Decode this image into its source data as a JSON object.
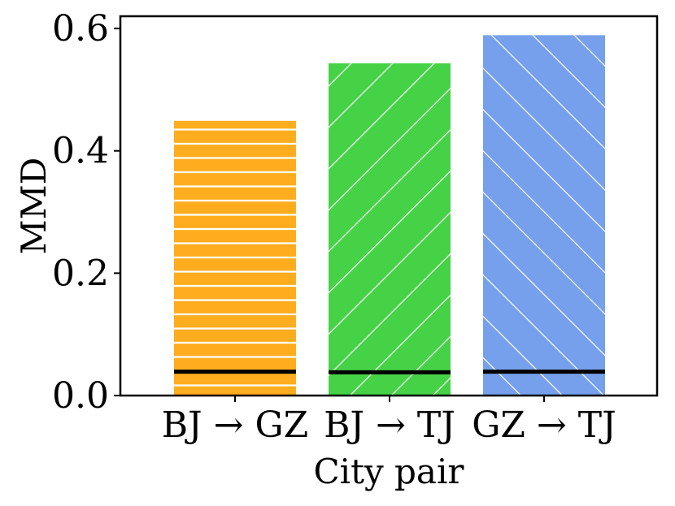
{
  "chart_data": {
    "type": "bar",
    "categories": [
      "BJ → GZ",
      "BJ → TJ",
      "GZ → TJ"
    ],
    "values": [
      0.449,
      0.543,
      0.589
    ],
    "baseline_values": [
      0.039,
      0.038,
      0.039
    ],
    "colors": [
      "#ffad1f",
      "#46d246",
      "#76a0ec"
    ],
    "hatches": [
      "horizontal",
      "diagonal-up",
      "diagonal-down"
    ],
    "xlabel": "City pair",
    "ylabel": "MMD",
    "ylim": [
      0,
      0.62
    ],
    "yticks": [
      0.0,
      0.2,
      0.4,
      0.6
    ],
    "ytick_labels": [
      "0.0",
      "0.2",
      "0.4",
      "0.6"
    ],
    "grid": false
  }
}
